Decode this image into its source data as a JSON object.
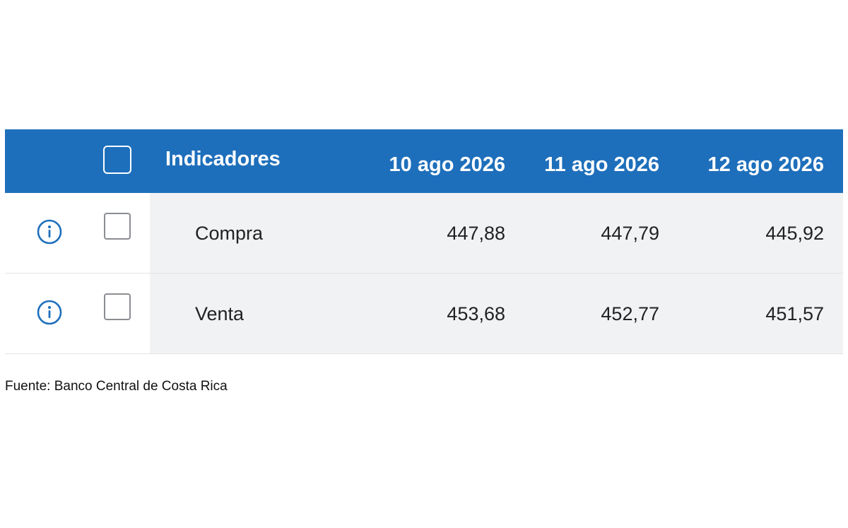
{
  "table": {
    "header": {
      "name_label": "Indicadores",
      "dates": [
        "10 ago 2026",
        "11 ago 2026",
        "12 ago 2026"
      ]
    },
    "rows": [
      {
        "label": "Compra",
        "values": [
          "447,88",
          "447,79",
          "445,92"
        ]
      },
      {
        "label": "Venta",
        "values": [
          "453,68",
          "452,77",
          "451,57"
        ]
      }
    ]
  },
  "footer": {
    "source": "Fuente: Banco Central de Costa Rica"
  },
  "colors": {
    "header_bg": "#1e6fbb",
    "row_bg": "#f1f2f4",
    "icon": "#1e6fbb"
  },
  "icons": {
    "row_icon": "info-icon"
  }
}
